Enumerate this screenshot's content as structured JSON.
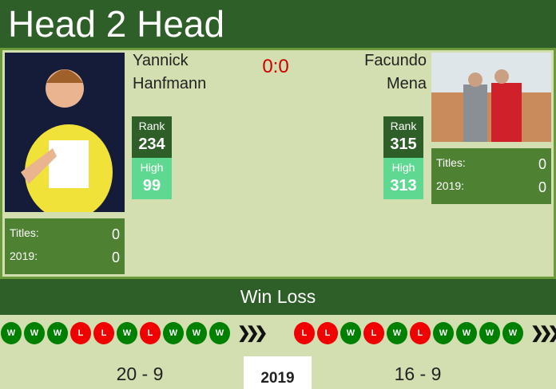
{
  "header": {
    "title": "Head 2 Head"
  },
  "score": "0:0",
  "player1": {
    "first": "Yannick",
    "last": "Hanfmann",
    "rank_label": "Rank",
    "rank": "234",
    "high_label": "High",
    "high": "99",
    "titles_label": "Titles:",
    "titles": "0",
    "year_label": "2019:",
    "year_titles": "0"
  },
  "player2": {
    "first": "Facundo",
    "last": "Mena",
    "rank_label": "Rank",
    "rank": "315",
    "high_label": "High",
    "high": "313",
    "titles_label": "Titles:",
    "titles": "0",
    "year_label": "2019:",
    "year_titles": "0"
  },
  "winloss": {
    "title": "Win Loss",
    "p1_form": [
      "W",
      "W",
      "W",
      "L",
      "L",
      "W",
      "L",
      "W",
      "W",
      "W"
    ],
    "p2_form": [
      "L",
      "L",
      "W",
      "L",
      "W",
      "L",
      "W",
      "W",
      "W",
      "W"
    ],
    "p1_record": "20 - 9",
    "p2_record": "16 - 9",
    "year_tab": "2019"
  },
  "colors": {
    "win": "#008000",
    "loss": "#f00000",
    "header": "#2f5f28",
    "high": "#5fd992"
  }
}
